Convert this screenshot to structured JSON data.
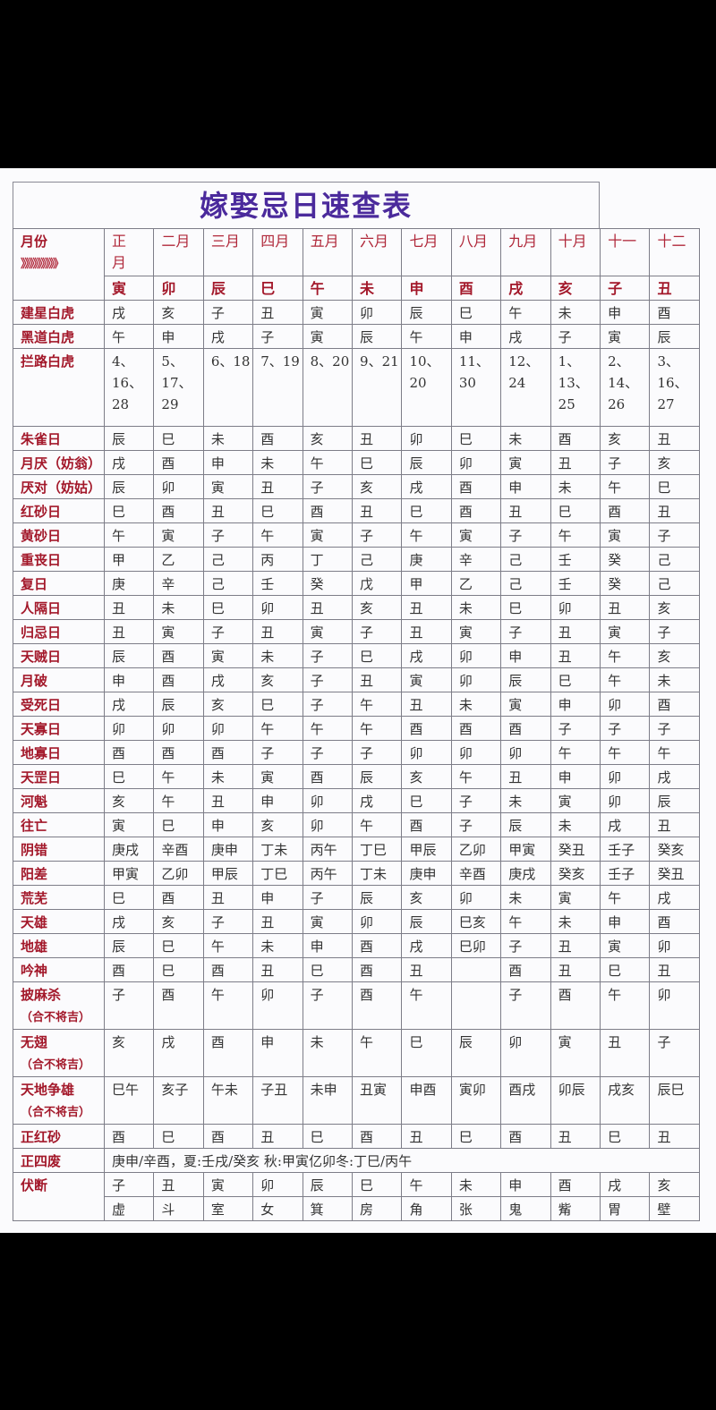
{
  "title": "嫁娶忌日速查表",
  "header": {
    "label": "月份",
    "arrows": "》》》》》》》》》",
    "months": [
      "正\n月",
      "二月",
      "三月",
      "四月",
      "五月",
      "六月",
      "七月",
      "八月",
      "九月",
      "十月",
      "十一",
      "十二"
    ],
    "branches": [
      "寅",
      "卯",
      "辰",
      "巳",
      "午",
      "未",
      "申",
      "酉",
      "戌",
      "亥",
      "子",
      "丑"
    ]
  },
  "rows": [
    {
      "label": "建星白虎",
      "cells": [
        "戌",
        "亥",
        "子",
        "丑",
        "寅",
        "卯",
        "辰",
        "巳",
        "午",
        "未",
        "申",
        "酉"
      ]
    },
    {
      "label": "黑道白虎",
      "cells": [
        "午",
        "申",
        "戌",
        "子",
        "寅",
        "辰",
        "午",
        "申",
        "戌",
        "子",
        "寅",
        "辰"
      ]
    },
    {
      "label": "拦路白虎",
      "cells": [
        "4、\n16、\n28",
        "5、\n17、\n29",
        "6、18",
        "7、19",
        "8、20",
        "9、21",
        "10、\n20",
        "11、\n30",
        "12、\n24",
        "1、\n13、\n25",
        "2、\n14、\n26",
        "3、\n16、\n27"
      ],
      "tall": 87
    },
    {
      "label": "朱雀日",
      "cells": [
        "辰",
        "巳",
        "未",
        "酉",
        "亥",
        "丑",
        "卯",
        "巳",
        "未",
        "酉",
        "亥",
        "丑"
      ]
    },
    {
      "label": "月厌（妨翁）",
      "cells": [
        "戌",
        "酉",
        "申",
        "未",
        "午",
        "巳",
        "辰",
        "卯",
        "寅",
        "丑",
        "子",
        "亥"
      ]
    },
    {
      "label": "厌对（妨姑）",
      "cells": [
        "辰",
        "卯",
        "寅",
        "丑",
        "子",
        "亥",
        "戌",
        "酉",
        "申",
        "未",
        "午",
        "巳"
      ]
    },
    {
      "label": "红砂日",
      "cells": [
        "巳",
        "酉",
        "丑",
        "巳",
        "酉",
        "丑",
        "巳",
        "酉",
        "丑",
        "巳",
        "酉",
        "丑"
      ]
    },
    {
      "label": "黄砂日",
      "cells": [
        "午",
        "寅",
        "子",
        "午",
        "寅",
        "子",
        "午",
        "寅",
        "子",
        "午",
        "寅",
        "子"
      ]
    },
    {
      "label": "重丧日",
      "cells": [
        "甲",
        "乙",
        "己",
        "丙",
        "丁",
        "己",
        "庚",
        "辛",
        "己",
        "壬",
        "癸",
        "己"
      ]
    },
    {
      "label": "复日",
      "cells": [
        "庚",
        "辛",
        "己",
        "壬",
        "癸",
        "戊",
        "甲",
        "乙",
        "己",
        "壬",
        "癸",
        "己"
      ]
    },
    {
      "label": "人隔日",
      "cells": [
        "丑",
        "未",
        "巳",
        "卯",
        "丑",
        "亥",
        "丑",
        "未",
        "巳",
        "卯",
        "丑",
        "亥"
      ]
    },
    {
      "label": "归忌日",
      "cells": [
        "丑",
        "寅",
        "子",
        "丑",
        "寅",
        "子",
        "丑",
        "寅",
        "子",
        "丑",
        "寅",
        "子"
      ]
    },
    {
      "label": "天贼日",
      "cells": [
        "辰",
        "酉",
        "寅",
        "未",
        "子",
        "巳",
        "戌",
        "卯",
        "申",
        "丑",
        "午",
        "亥"
      ]
    },
    {
      "label": "月破",
      "cells": [
        "申",
        "酉",
        "戌",
        "亥",
        "子",
        "丑",
        "寅",
        "卯",
        "辰",
        "巳",
        "午",
        "未"
      ]
    },
    {
      "label": "受死日",
      "cells": [
        "戌",
        "辰",
        "亥",
        "巳",
        "子",
        "午",
        "丑",
        "未",
        "寅",
        "申",
        "卯",
        "酉"
      ]
    },
    {
      "label": "天寡日",
      "cells": [
        "卯",
        "卯",
        "卯",
        "午",
        "午",
        "午",
        "酉",
        "酉",
        "酉",
        "子",
        "子",
        "子"
      ]
    },
    {
      "label": "地寡日",
      "cells": [
        "酉",
        "酉",
        "酉",
        "子",
        "子",
        "子",
        "卯",
        "卯",
        "卯",
        "午",
        "午",
        "午"
      ]
    },
    {
      "label": "天罡日",
      "cells": [
        "巳",
        "午",
        "未",
        "寅",
        "酉",
        "辰",
        "亥",
        "午",
        "丑",
        "申",
        "卯",
        "戌"
      ]
    },
    {
      "label": "河魁",
      "cells": [
        "亥",
        "午",
        "丑",
        "申",
        "卯",
        "戌",
        "巳",
        "子",
        "未",
        "寅",
        "卯",
        "辰"
      ]
    },
    {
      "label": "往亡",
      "cells": [
        "寅",
        "巳",
        "申",
        "亥",
        "卯",
        "午",
        "酉",
        "子",
        "辰",
        "未",
        "戌",
        "丑"
      ]
    },
    {
      "label": "阴错",
      "cells": [
        "庚戌",
        "辛酉",
        "庚申",
        "丁未",
        "丙午",
        "丁巳",
        "甲辰",
        "乙卯",
        "甲寅",
        "癸丑",
        "壬子",
        "癸亥"
      ]
    },
    {
      "label": "阳差",
      "cells": [
        "甲寅",
        "乙卯",
        "甲辰",
        "丁巳",
        "丙午",
        "丁未",
        "庚申",
        "辛酉",
        "庚戌",
        "癸亥",
        "壬子",
        "癸丑"
      ]
    },
    {
      "label": "荒芜",
      "cells": [
        "巳",
        "酉",
        "丑",
        "申",
        "子",
        "辰",
        "亥",
        "卯",
        "未",
        "寅",
        "午",
        "戌"
      ]
    },
    {
      "label": "天雄",
      "cells": [
        "戌",
        "亥",
        "子",
        "丑",
        "寅",
        "卯",
        "辰",
        "巳亥",
        "午",
        "未",
        "申",
        "酉"
      ]
    },
    {
      "label": "地雄",
      "cells": [
        "辰",
        "巳",
        "午",
        "未",
        "申",
        "酉",
        "戌",
        "巳卯",
        "子",
        "丑",
        "寅",
        "卯"
      ]
    },
    {
      "label": "吟神",
      "cells": [
        "酉",
        "巳",
        "酉",
        "丑",
        "巳",
        "酉",
        "丑",
        "",
        "酉",
        "丑",
        "巳",
        "丑"
      ]
    },
    {
      "label": "披麻杀",
      "sub": "（合不将吉）",
      "cells": [
        "子",
        "酉",
        "午",
        "卯",
        "子",
        "酉",
        "午",
        "",
        "子",
        "酉",
        "午",
        "卯"
      ],
      "tall": 52
    },
    {
      "label": "无翅",
      "sub": "（合不将吉）",
      "cells": [
        "亥",
        "戌",
        "酉",
        "申",
        "未",
        "午",
        "巳",
        "辰",
        "卯",
        "寅",
        "丑",
        "子"
      ],
      "tall": 52
    },
    {
      "label": "天地争雄",
      "sub": "（合不将吉）",
      "cells": [
        "巳午",
        "亥子",
        "午未",
        "子丑",
        "未申",
        "丑寅",
        "申酉",
        "寅卯",
        "酉戌",
        "卯辰",
        "戌亥",
        "辰巳"
      ],
      "tall": 52
    },
    {
      "label": "正红砂",
      "cells": [
        "酉",
        "巳",
        "酉",
        "丑",
        "巳",
        "酉",
        "丑",
        "巳",
        "酉",
        "丑",
        "巳",
        "丑"
      ]
    }
  ],
  "zhengsifei": {
    "label": "正四废",
    "text": "庚申/辛酉，夏:壬戌/癸亥 秋:甲寅亿卯冬:丁巳/丙午"
  },
  "fuduan": {
    "label": "伏断",
    "branches": [
      "子",
      "丑",
      "寅",
      "卯",
      "辰",
      "巳",
      "午",
      "未",
      "申",
      "酉",
      "戌",
      "亥"
    ],
    "mansions": [
      "虚",
      "斗",
      "室",
      "女",
      "箕",
      "房",
      "角",
      "张",
      "鬼",
      "觜",
      "胃",
      "壁"
    ]
  },
  "colors": {
    "title": "#4b2a9c",
    "label": "#a3182a",
    "grid": "#7d7d88"
  }
}
